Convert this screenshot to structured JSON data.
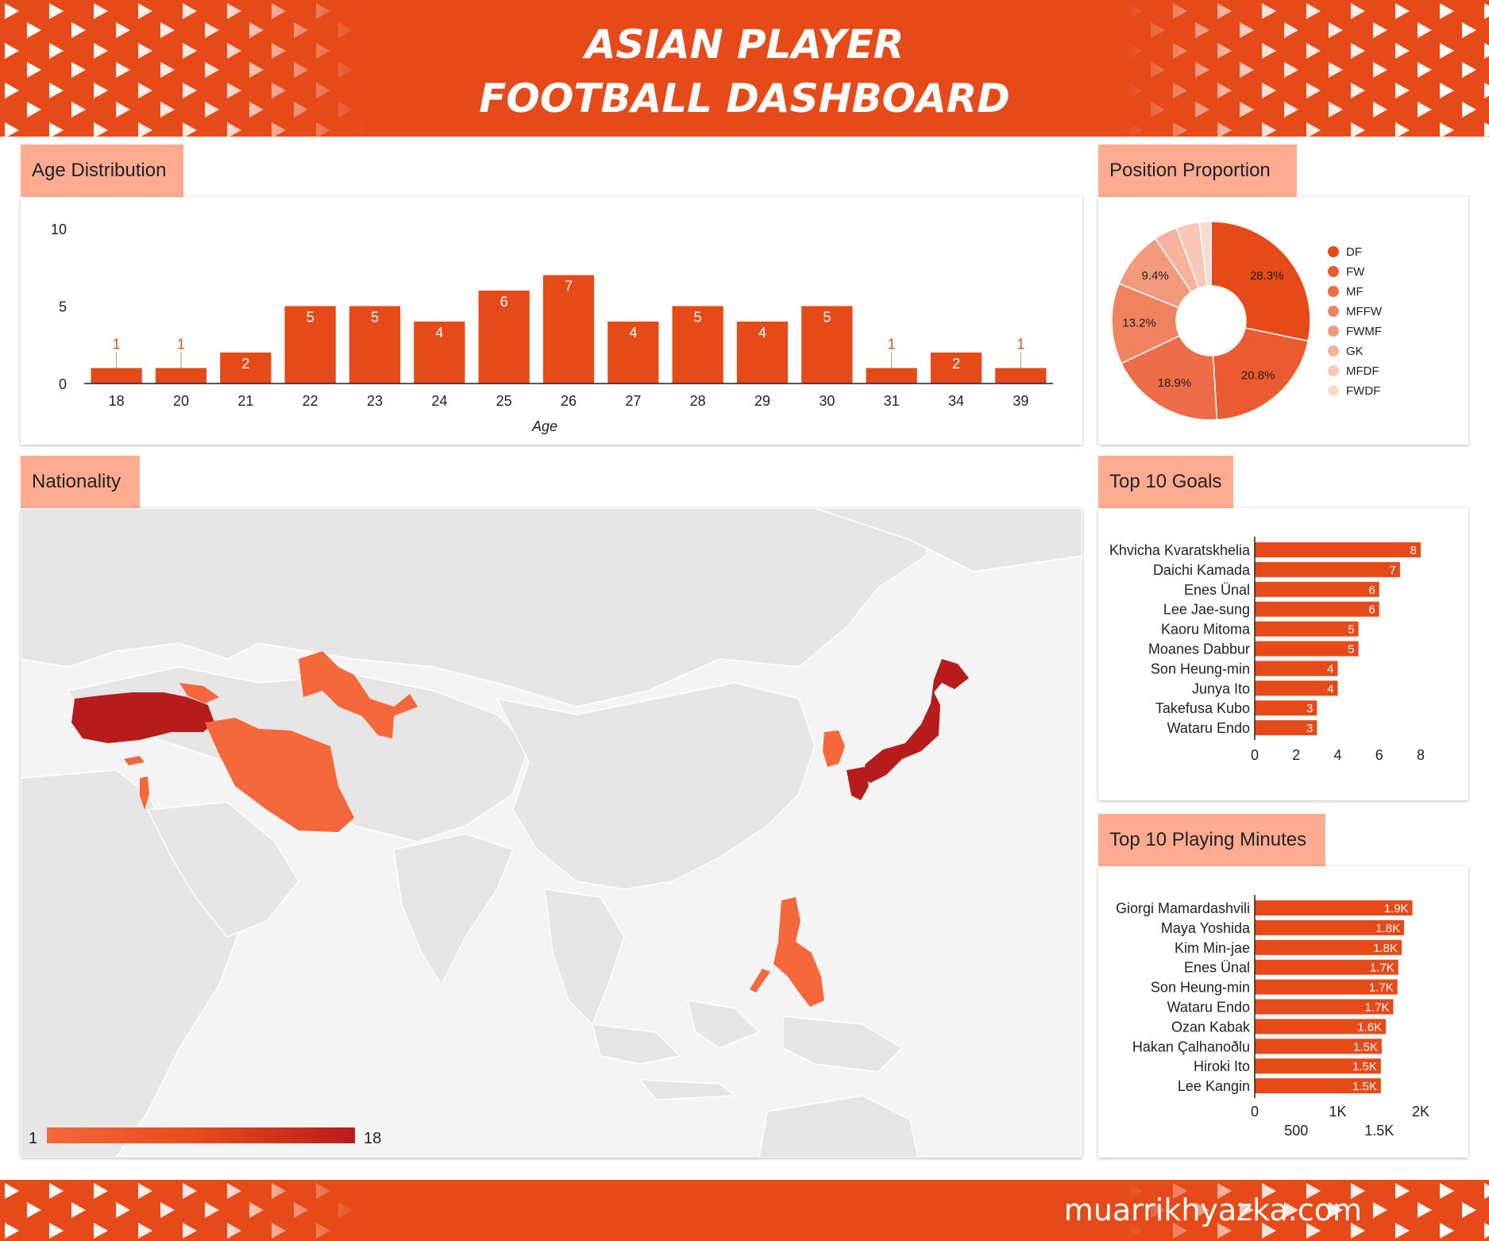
{
  "header": {
    "title_line1": "ASIAN PLAYER",
    "title_line2": "FOOTBALL DASHBOARD"
  },
  "footer": {
    "site": "muarrikhyazka.com"
  },
  "colors": {
    "accent": "#e64a19",
    "section_bg": "#ffab91",
    "map_land": "#e8e8e8",
    "map_dark": "#b71c1c"
  },
  "sections": {
    "age": "Age Distribution",
    "position": "Position Proportion",
    "nationality": "Nationality",
    "goals": "Top 10 Goals",
    "minutes": "Top 10 Playing Minutes"
  },
  "map_legend": {
    "min": "1",
    "max": "18"
  },
  "chart_data": [
    {
      "id": "age",
      "type": "bar",
      "title": "Age Distribution",
      "xlabel": "Age",
      "ylabel": "",
      "ylim": [
        0,
        10
      ],
      "yticks": [
        "0",
        "5",
        "10"
      ],
      "categories": [
        "18",
        "20",
        "21",
        "22",
        "23",
        "24",
        "25",
        "26",
        "27",
        "28",
        "29",
        "30",
        "31",
        "34",
        "39"
      ],
      "values": [
        1,
        1,
        2,
        5,
        5,
        4,
        6,
        7,
        4,
        5,
        4,
        5,
        1,
        2,
        1
      ]
    },
    {
      "id": "position",
      "type": "pie",
      "title": "Position Proportion",
      "labels": [
        "DF",
        "FW",
        "MF",
        "MFFW",
        "FWMF",
        "GK",
        "MFDF",
        "FWDF"
      ],
      "values": [
        28.3,
        20.8,
        18.9,
        13.2,
        9.4,
        3.8,
        3.8,
        1.9
      ],
      "display_labels": [
        "28.3%",
        "20.8%",
        "18.9%",
        "13.2%",
        "9.4%",
        "",
        "",
        ""
      ],
      "colors": [
        "#e64a19",
        "#eb5a30",
        "#ee6d48",
        "#f08260",
        "#f39a7d",
        "#f6b29c",
        "#f9c8b7",
        "#fbdcd0"
      ],
      "legend": "right"
    },
    {
      "id": "goals",
      "type": "bar",
      "orientation": "horizontal",
      "title": "Top 10 Goals",
      "categories": [
        "Khvicha Kvaratskhelia",
        "Daichi Kamada",
        "Enes Ünal",
        "Lee Jae-sung",
        "Kaoru Mitoma",
        "Moanes Dabbur",
        "Son Heung-min",
        "Junya Ito",
        "Takefusa Kubo",
        "Wataru Endo"
      ],
      "values": [
        8,
        7,
        6,
        6,
        5,
        5,
        4,
        4,
        3,
        3
      ],
      "xlim": [
        0,
        8
      ],
      "xticks": [
        "0",
        "2",
        "4",
        "6",
        "8"
      ]
    },
    {
      "id": "minutes",
      "type": "bar",
      "orientation": "horizontal",
      "title": "Top 10 Playing Minutes",
      "categories": [
        "Giorgi Mamardashvili",
        "Maya Yoshida",
        "Kim Min-jae",
        "Enes Ünal",
        "Son Heung-min",
        "Wataru Endo",
        "Ozan Kabak",
        "Hakan Çalhanoðlu",
        "Hiroki Ito",
        "Lee Kangin"
      ],
      "values": [
        1900,
        1800,
        1770,
        1730,
        1720,
        1670,
        1580,
        1530,
        1520,
        1520
      ],
      "data_labels": [
        "1.9K",
        "1.8K",
        "1.8K",
        "1.7K",
        "1.7K",
        "1.7K",
        "1.6K",
        "1.5K",
        "1.5K",
        "1.5K"
      ],
      "xlim": [
        0,
        2000
      ],
      "xticks_top": [
        "0",
        "1K",
        "2K"
      ],
      "xticks_bottom": [
        "500",
        "1.5K"
      ]
    }
  ]
}
